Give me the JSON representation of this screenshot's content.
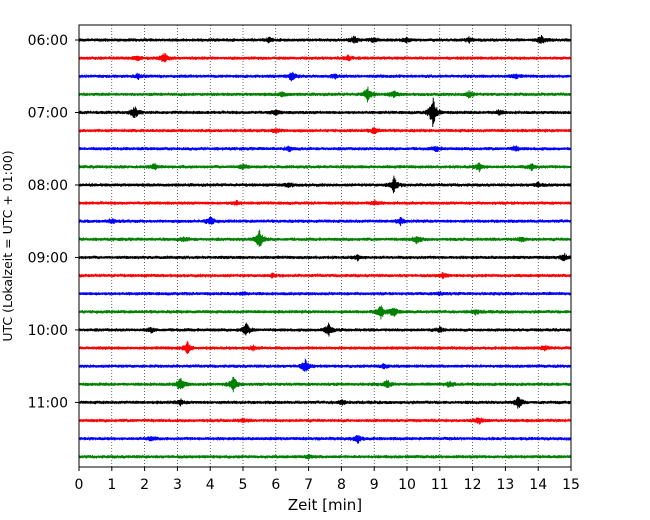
{
  "chart_data": {
    "type": "line",
    "subtype": "helicorder",
    "xlabel": "Zeit  [min]",
    "ylabel": "UTC (Lokalzeit = UTC + 01:00)",
    "xlim": [
      0,
      15
    ],
    "x_ticks": [
      "0",
      "1",
      "2",
      "3",
      "4",
      "5",
      "6",
      "7",
      "8",
      "9",
      "10",
      "11",
      "12",
      "13",
      "14",
      "15"
    ],
    "y_ticks": [
      "06:00",
      "07:00",
      "08:00",
      "09:00",
      "10:00",
      "11:00"
    ],
    "grid": "vertical dotted",
    "trace_colors": [
      "#000000",
      "#ff0000",
      "#0000ff",
      "#008000"
    ],
    "minutes_per_line": 15,
    "traces": [
      {
        "start": "06:00",
        "events": [
          [
            8.4,
            0.5
          ],
          [
            14.1,
            0.5
          ],
          [
            5.8,
            0.3
          ],
          [
            9.0,
            0.3
          ],
          [
            10.0,
            0.3
          ],
          [
            11.9,
            0.3
          ]
        ]
      },
      {
        "start": "06:15",
        "events": [
          [
            2.6,
            0.6
          ],
          [
            1.8,
            0.3
          ],
          [
            8.2,
            0.3
          ]
        ]
      },
      {
        "start": "06:30",
        "events": [
          [
            6.5,
            0.6
          ],
          [
            1.8,
            0.3
          ],
          [
            7.8,
            0.3
          ],
          [
            13.3,
            0.3
          ]
        ]
      },
      {
        "start": "06:45",
        "events": [
          [
            8.8,
            0.9
          ],
          [
            9.6,
            0.4
          ],
          [
            11.9,
            0.4
          ],
          [
            6.2,
            0.3
          ]
        ]
      },
      {
        "start": "07:00",
        "events": [
          [
            10.8,
            2.0
          ],
          [
            1.7,
            0.8
          ],
          [
            6.0,
            0.3
          ],
          [
            12.8,
            0.3
          ]
        ]
      },
      {
        "start": "07:15",
        "events": [
          [
            9.0,
            0.4
          ],
          [
            6.0,
            0.3
          ]
        ]
      },
      {
        "start": "07:30",
        "events": [
          [
            6.4,
            0.3
          ],
          [
            10.9,
            0.3
          ],
          [
            13.3,
            0.3
          ]
        ]
      },
      {
        "start": "07:45",
        "events": [
          [
            12.2,
            0.5
          ],
          [
            2.3,
            0.4
          ],
          [
            13.8,
            0.4
          ],
          [
            5.0,
            0.3
          ]
        ]
      },
      {
        "start": "08:00",
        "events": [
          [
            9.6,
            1.0
          ],
          [
            6.4,
            0.3
          ],
          [
            14.0,
            0.3
          ]
        ]
      },
      {
        "start": "08:15",
        "events": [
          [
            4.8,
            0.3
          ],
          [
            9.0,
            0.3
          ]
        ]
      },
      {
        "start": "08:30",
        "events": [
          [
            4.0,
            0.6
          ],
          [
            9.8,
            0.4
          ],
          [
            1.0,
            0.3
          ]
        ]
      },
      {
        "start": "08:45",
        "events": [
          [
            5.5,
            1.3
          ],
          [
            10.3,
            0.5
          ],
          [
            3.2,
            0.3
          ],
          [
            13.5,
            0.3
          ]
        ]
      },
      {
        "start": "09:00",
        "events": [
          [
            14.8,
            0.4
          ],
          [
            8.5,
            0.3
          ]
        ]
      },
      {
        "start": "09:15",
        "events": [
          [
            11.1,
            0.3
          ],
          [
            5.9,
            0.2
          ]
        ]
      },
      {
        "start": "09:30",
        "events": [
          [
            5.0,
            0.2
          ],
          [
            11.0,
            0.2
          ]
        ]
      },
      {
        "start": "09:45",
        "events": [
          [
            9.2,
            0.9
          ],
          [
            9.6,
            0.6
          ],
          [
            12.1,
            0.3
          ]
        ]
      },
      {
        "start": "10:00",
        "events": [
          [
            5.1,
            0.8
          ],
          [
            7.6,
            0.8
          ],
          [
            11.0,
            0.3
          ],
          [
            2.2,
            0.3
          ]
        ]
      },
      {
        "start": "10:15",
        "events": [
          [
            3.3,
            0.8
          ],
          [
            5.3,
            0.3
          ],
          [
            14.2,
            0.3
          ]
        ]
      },
      {
        "start": "10:30",
        "events": [
          [
            6.9,
            0.8
          ],
          [
            9.3,
            0.3
          ]
        ]
      },
      {
        "start": "10:45",
        "events": [
          [
            3.1,
            0.9
          ],
          [
            4.7,
            1.0
          ],
          [
            9.4,
            0.5
          ],
          [
            11.3,
            0.4
          ]
        ]
      },
      {
        "start": "11:00",
        "events": [
          [
            13.4,
            0.8
          ],
          [
            3.1,
            0.3
          ],
          [
            8.0,
            0.3
          ]
        ]
      },
      {
        "start": "11:15",
        "events": [
          [
            12.2,
            0.4
          ],
          [
            5.0,
            0.2
          ]
        ]
      },
      {
        "start": "11:30",
        "events": [
          [
            8.5,
            0.6
          ],
          [
            2.2,
            0.3
          ]
        ]
      },
      {
        "start": "11:45",
        "events": [
          [
            7.0,
            0.2
          ]
        ]
      }
    ]
  }
}
